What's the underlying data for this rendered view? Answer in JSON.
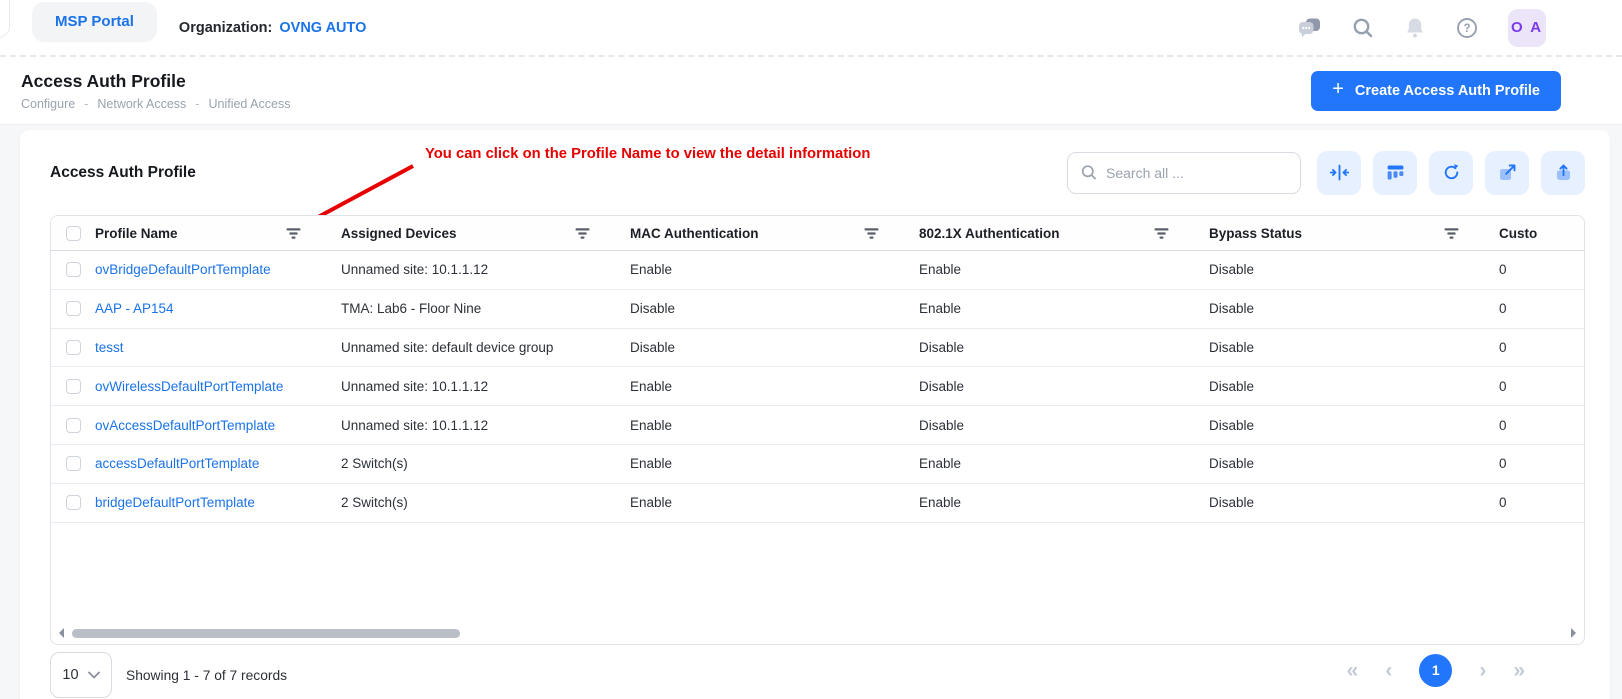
{
  "topbar": {
    "portal_tab": "MSP Portal",
    "org_label": "Organization:",
    "org_value": "OVNG AUTO",
    "icons": [
      "chat-icon",
      "search-icon",
      "bell-icon",
      "help-icon"
    ],
    "avatar": "O A"
  },
  "page_header": {
    "title": "Access Auth Profile",
    "breadcrumb": [
      "Configure",
      "Network Access",
      "Unified Access"
    ],
    "create_button": {
      "icon": "+",
      "label": "Create Access Auth Profile"
    }
  },
  "card": {
    "title": "Access Auth Profile",
    "annotation": "You can click on the Profile Name to view the detail information",
    "search_placeholder": "Search all ...",
    "toolbar_icons": [
      "fit-columns-icon",
      "table-columns-icon",
      "refresh-icon",
      "open-external-icon",
      "export-up-icon"
    ]
  },
  "table": {
    "columns": [
      {
        "label": "Profile Name",
        "filter": true
      },
      {
        "label": "Assigned Devices",
        "filter": true
      },
      {
        "label": "MAC Authentication",
        "filter": true
      },
      {
        "label": "802.1X Authentication",
        "filter": true
      },
      {
        "label": "Bypass Status",
        "filter": true
      },
      {
        "label": "Custo",
        "filter": false
      }
    ],
    "rows": [
      {
        "profile_name": "ovBridgeDefaultPortTemplate",
        "assigned_devices": "Unnamed site: 10.1.1.12",
        "mac_auth": "Enable",
        "dot1x_auth": "Enable",
        "bypass_status": "Disable",
        "custom": "0"
      },
      {
        "profile_name": "AAP - AP154",
        "assigned_devices": "TMA: Lab6 - Floor Nine",
        "mac_auth": "Disable",
        "dot1x_auth": "Enable",
        "bypass_status": "Disable",
        "custom": "0"
      },
      {
        "profile_name": "tesst",
        "assigned_devices": "Unnamed site: default device group",
        "mac_auth": "Disable",
        "dot1x_auth": "Disable",
        "bypass_status": "Disable",
        "custom": "0"
      },
      {
        "profile_name": "ovWirelessDefaultPortTemplate",
        "assigned_devices": "Unnamed site: 10.1.1.12",
        "mac_auth": "Enable",
        "dot1x_auth": "Disable",
        "bypass_status": "Disable",
        "custom": "0"
      },
      {
        "profile_name": "ovAccessDefaultPortTemplate",
        "assigned_devices": "Unnamed site: 10.1.1.12",
        "mac_auth": "Enable",
        "dot1x_auth": "Disable",
        "bypass_status": "Disable",
        "custom": "0"
      },
      {
        "profile_name": "accessDefaultPortTemplate",
        "assigned_devices": "2 Switch(s)",
        "mac_auth": "Enable",
        "dot1x_auth": "Enable",
        "bypass_status": "Disable",
        "custom": "0"
      },
      {
        "profile_name": "bridgeDefaultPortTemplate",
        "assigned_devices": "2 Switch(s)",
        "mac_auth": "Enable",
        "dot1x_auth": "Enable",
        "bypass_status": "Disable",
        "custom": "0"
      }
    ]
  },
  "footer": {
    "page_size": "10",
    "records_text": "Showing 1 - 7 of 7 records",
    "current_page": "1",
    "pagination_icons": [
      "first-page-icon",
      "prev-page-icon",
      "next-page-icon",
      "last-page-icon"
    ]
  },
  "colors": {
    "accent_blue": "#2276fc",
    "link_blue": "#1a73e8",
    "annotation_red": "#e60000",
    "avatar_bg": "#ece4f8",
    "avatar_text": "#7c3bed",
    "page_bg": "#f6f7f9"
  }
}
